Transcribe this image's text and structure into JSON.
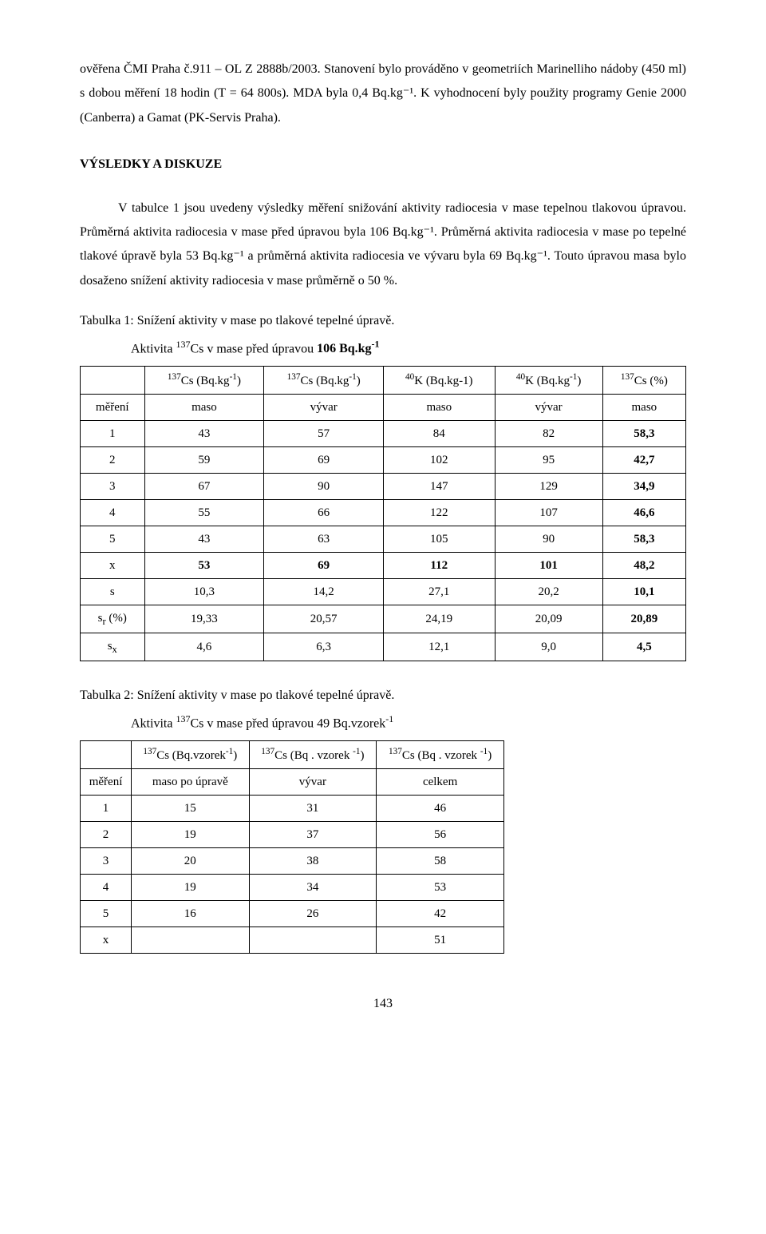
{
  "para1": "ověřena ČMI Praha č.911 – OL Z 2888b/2003. Stanovení bylo prováděno v geometriích Marinelliho nádoby (450 ml) s dobou měření 18 hodin (T = 64 800s). MDA byla 0,4 Bq.kg⁻¹. K vyhodnocení byly použity programy Genie 2000 (Canberra) a Gamat (PK-Servis Praha).",
  "heading_results": "VÝSLEDKY A DISKUZE",
  "para2": "V tabulce 1 jsou uvedeny výsledky měření snižování aktivity radiocesia v mase tepelnou tlakovou úpravou. Průměrná aktivita radiocesia v mase před úpravou byla 106 Bq.kg⁻¹. Průměrná aktivita radiocesia v mase po tepelné tlakové úpravě byla 53 Bq.kg⁻¹ a průměrná aktivita radiocesia ve vývaru byla 69 Bq.kg⁻¹. Touto úpravou masa bylo dosaženo snížení aktivity radiocesia v mase průměrně o 50 %.",
  "table1": {
    "caption": "Tabulka 1: Snížení aktivity v mase po tlakové tepelné úpravě.",
    "subcaption_prefix": "Aktivita ",
    "subcaption_nuclide_pre": "137",
    "subcaption_nuclide": "Cs v mase před úpravou ",
    "subcaption_bold": "106 Bq.kg",
    "subcaption_exp": "-1",
    "header_row1": {
      "col0": "",
      "col1_pre": "137",
      "col1_mid": "Cs (Bq.kg",
      "col1_exp": "-1",
      "col1_post": ")",
      "col2_pre": "137",
      "col2_mid": "Cs (Bq.kg",
      "col2_exp": "-1",
      "col2_post": ")",
      "col3_pre": "40",
      "col3_mid": "K (Bq.kg-1)",
      "col4_pre": "40",
      "col4_mid": "K (Bq.kg",
      "col4_exp": "-1",
      "col4_post": ")",
      "col5_pre": "137",
      "col5_mid": "Cs (%)"
    },
    "header_row2": {
      "col0": "měření",
      "col1": "maso",
      "col2": "vývar",
      "col3": "maso",
      "col4": "vývar",
      "col5": "maso"
    },
    "rows": [
      {
        "c0": "1",
        "c1": "43",
        "c2": "57",
        "c3": "84",
        "c4": "82",
        "c5": "58,3"
      },
      {
        "c0": "2",
        "c1": "59",
        "c2": "69",
        "c3": "102",
        "c4": "95",
        "c5": "42,7"
      },
      {
        "c0": "3",
        "c1": "67",
        "c2": "90",
        "c3": "147",
        "c4": "129",
        "c5": "34,9"
      },
      {
        "c0": "4",
        "c1": "55",
        "c2": "66",
        "c3": "122",
        "c4": "107",
        "c5": "46,6"
      },
      {
        "c0": "5",
        "c1": "43",
        "c2": "63",
        "c3": "105",
        "c4": "90",
        "c5": "58,3"
      },
      {
        "c0": "x",
        "c1": "53",
        "c2": "69",
        "c3": "112",
        "c4": "101",
        "c5": "48,2"
      },
      {
        "c0": "s",
        "c1": "10,3",
        "c2": "14,2",
        "c3": "27,1",
        "c4": "20,2",
        "c5": "10,1"
      },
      {
        "c0_html": "s<sub>r</sub> (%)",
        "c1": "19,33",
        "c2": "20,57",
        "c3": "24,19",
        "c4": "20,09",
        "c5": "20,89"
      },
      {
        "c0_html": "s<sub>x</sub>",
        "c1": "4,6",
        "c2": "6,3",
        "c3": "12,1",
        "c4": "9,0",
        "c5": "4,5"
      }
    ]
  },
  "table2": {
    "caption": "Tabulka 2: Snížení aktivity v mase po tlakové tepelné úpravě.",
    "subcaption_prefix": "Aktivita ",
    "subcaption_nuclide_pre": "137",
    "subcaption_nuclide": "Cs v mase před úpravou 49 Bq.vzorek",
    "subcaption_exp": "-1",
    "header_row1": {
      "col0": "",
      "col1_pre": "137",
      "col1_mid": "Cs (Bq.vzorek",
      "col1_exp": "-1",
      "col1_post": ")",
      "col2_pre": "137",
      "col2_mid": "Cs (Bq . vzorek ",
      "col2_exp": "-1",
      "col2_post": ")",
      "col3_pre": "137",
      "col3_mid": "Cs (Bq . vzorek ",
      "col3_exp": "-1",
      "col3_post": ")"
    },
    "header_row2": {
      "col0": "měření",
      "col1": "maso po úpravě",
      "col2": "vývar",
      "col3": "celkem"
    },
    "rows": [
      {
        "c0": "1",
        "c1": "15",
        "c2": "31",
        "c3": "46"
      },
      {
        "c0": "2",
        "c1": "19",
        "c2": "37",
        "c3": "56"
      },
      {
        "c0": "3",
        "c1": "20",
        "c2": "38",
        "c3": "58"
      },
      {
        "c0": "4",
        "c1": "19",
        "c2": "34",
        "c3": "53"
      },
      {
        "c0": "5",
        "c1": "16",
        "c2": "26",
        "c3": "42"
      },
      {
        "c0": "x",
        "c1": "",
        "c2": "",
        "c3": "51"
      }
    ]
  },
  "page_number": "143"
}
